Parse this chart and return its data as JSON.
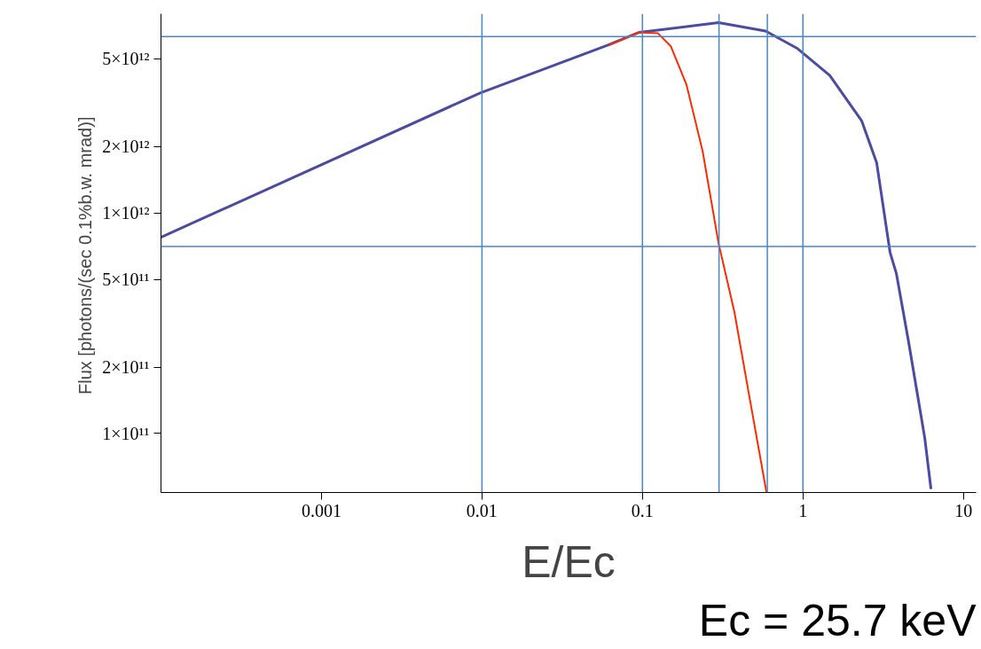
{
  "chart_data": {
    "type": "line",
    "ylabel": "Flux [photons/(sec  0.1%b.w. mrad)]",
    "xlabel": "E/Ec",
    "annotations": [
      "Ec = 25.7 keV"
    ],
    "log": "xy",
    "grid": false,
    "marker": "none",
    "line_style": "solid",
    "xlim": [
      0.0001,
      12
    ],
    "ylim": [
      54000000000.0,
      8000000000000.0
    ],
    "xticks": [
      0.001,
      0.01,
      0.1,
      1,
      10
    ],
    "yticks": [
      {
        "value": 100000000000.0,
        "label": "1×10¹¹"
      },
      {
        "value": 200000000000.0,
        "label": "2×10¹¹"
      },
      {
        "value": 500000000000.0,
        "label": "5×10¹¹"
      },
      {
        "value": 1000000000000.0,
        "label": "1×10¹²"
      },
      {
        "value": 2000000000000.0,
        "label": "2×10¹²"
      },
      {
        "value": 5000000000000.0,
        "label": "5×10¹²"
      }
    ],
    "series": [
      {
        "color": "#4b4ba0",
        "x": [
          0.0001,
          0.00975,
          0.0604,
          0.0957,
          0.298,
          0.585,
          0.926,
          1.47,
          2.32,
          2.88,
          3.49,
          3.82,
          4.56,
          5.74,
          6.28
        ],
        "values": [
          776000000000.0,
          3500000000000.0,
          5750000000000.0,
          6590000000000.0,
          7290000000000.0,
          6680000000000.0,
          5560000000000.0,
          4200000000000.0,
          2620000000000.0,
          1690000000000.0,
          663000000000.0,
          532000000000.0,
          259000000000.0,
          95700000000.0,
          56000000000.0
        ]
      },
      {
        "color": "#ff2a00",
        "x": [
          0.0617,
          0.0957,
          0.125,
          0.15,
          0.188,
          0.237,
          0.298,
          0.374,
          0.471,
          0.593
        ],
        "values": [
          5750000000000.0,
          6590000000000.0,
          6520000000000.0,
          5710000000000.0,
          3820000000000.0,
          1910000000000.0,
          729000000000.0,
          356000000000.0,
          138000000000.0,
          54000000000.0
        ]
      }
    ],
    "ref_lines": [
      {
        "axis": "x",
        "value": 0.01,
        "color": "#4a86c5"
      },
      {
        "axis": "x",
        "value": 0.1,
        "color": "#4a86c5"
      },
      {
        "axis": "x",
        "value": 0.3,
        "color": "#4a86c5"
      },
      {
        "axis": "x",
        "value": 0.6,
        "color": "#4a86c5"
      },
      {
        "axis": "x",
        "value": 1,
        "color": "#4a86c5"
      },
      {
        "axis": "y",
        "value": 6300000000000.0,
        "color": "#4a86c5"
      },
      {
        "axis": "y",
        "value": 705000000000.0,
        "color": "#4a86c5"
      }
    ]
  }
}
